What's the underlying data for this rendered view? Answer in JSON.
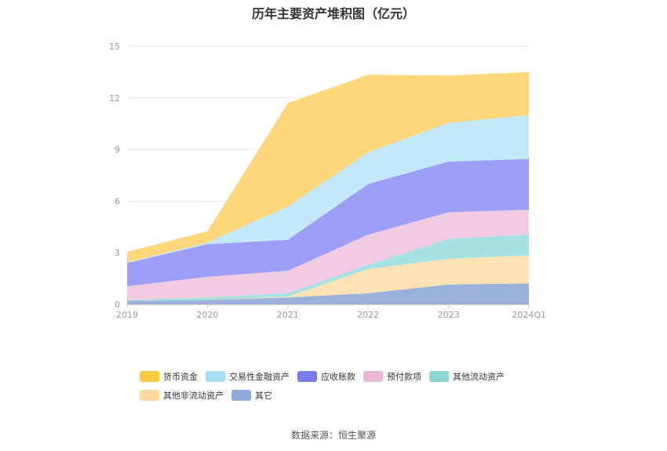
{
  "chart_data": {
    "type": "area",
    "stacked": true,
    "title": "历年主要资产堆积图（亿元）",
    "categories": [
      "2019",
      "2020",
      "2021",
      "2022",
      "2023",
      "2024Q1"
    ],
    "ylim": [
      0,
      15
    ],
    "yticks": [
      0,
      3,
      6,
      9,
      12,
      15
    ],
    "series": [
      {
        "name": "其它",
        "color": "#9bb1dc",
        "values": [
          0.2,
          0.25,
          0.4,
          0.65,
          1.15,
          1.22
        ]
      },
      {
        "name": "其他非流动资产",
        "color": "#fde2b3",
        "values": [
          0.0,
          0.0,
          0.05,
          1.4,
          1.5,
          1.63
        ]
      },
      {
        "name": "其他流动资产",
        "color": "#a3e1e2",
        "values": [
          0.05,
          0.15,
          0.2,
          0.25,
          1.15,
          1.2
        ]
      },
      {
        "name": "预付款项",
        "color": "#f0cbe2",
        "values": [
          0.8,
          1.2,
          1.3,
          1.75,
          1.55,
          1.45
        ]
      },
      {
        "name": "应收账款",
        "color": "#9d9ef6",
        "values": [
          1.35,
          1.9,
          1.8,
          2.95,
          2.95,
          2.95
        ]
      },
      {
        "name": "交易性金融资产",
        "color": "#c3e8fa",
        "values": [
          0.05,
          0.1,
          1.95,
          1.85,
          2.25,
          2.55
        ]
      },
      {
        "name": "货币资金",
        "color": "#fed77a",
        "values": [
          0.6,
          0.65,
          6.0,
          4.5,
          2.75,
          2.5
        ]
      }
    ],
    "legend": [
      {
        "name": "货币资金",
        "color": "#fcc93f"
      },
      {
        "name": "交易性金融资产",
        "color": "#a8ddf7"
      },
      {
        "name": "应收账款",
        "color": "#7b7bf0"
      },
      {
        "name": "预付款项",
        "color": "#ebb7d8"
      },
      {
        "name": "其他流动资产",
        "color": "#87d7d6"
      },
      {
        "name": "其他非流动资产",
        "color": "#fdd9a2"
      },
      {
        "name": "其它",
        "color": "#8fa8da"
      }
    ],
    "legend_position": "bottom",
    "grid": true
  },
  "footer": {
    "source": "数据来源：恒生聚源"
  }
}
